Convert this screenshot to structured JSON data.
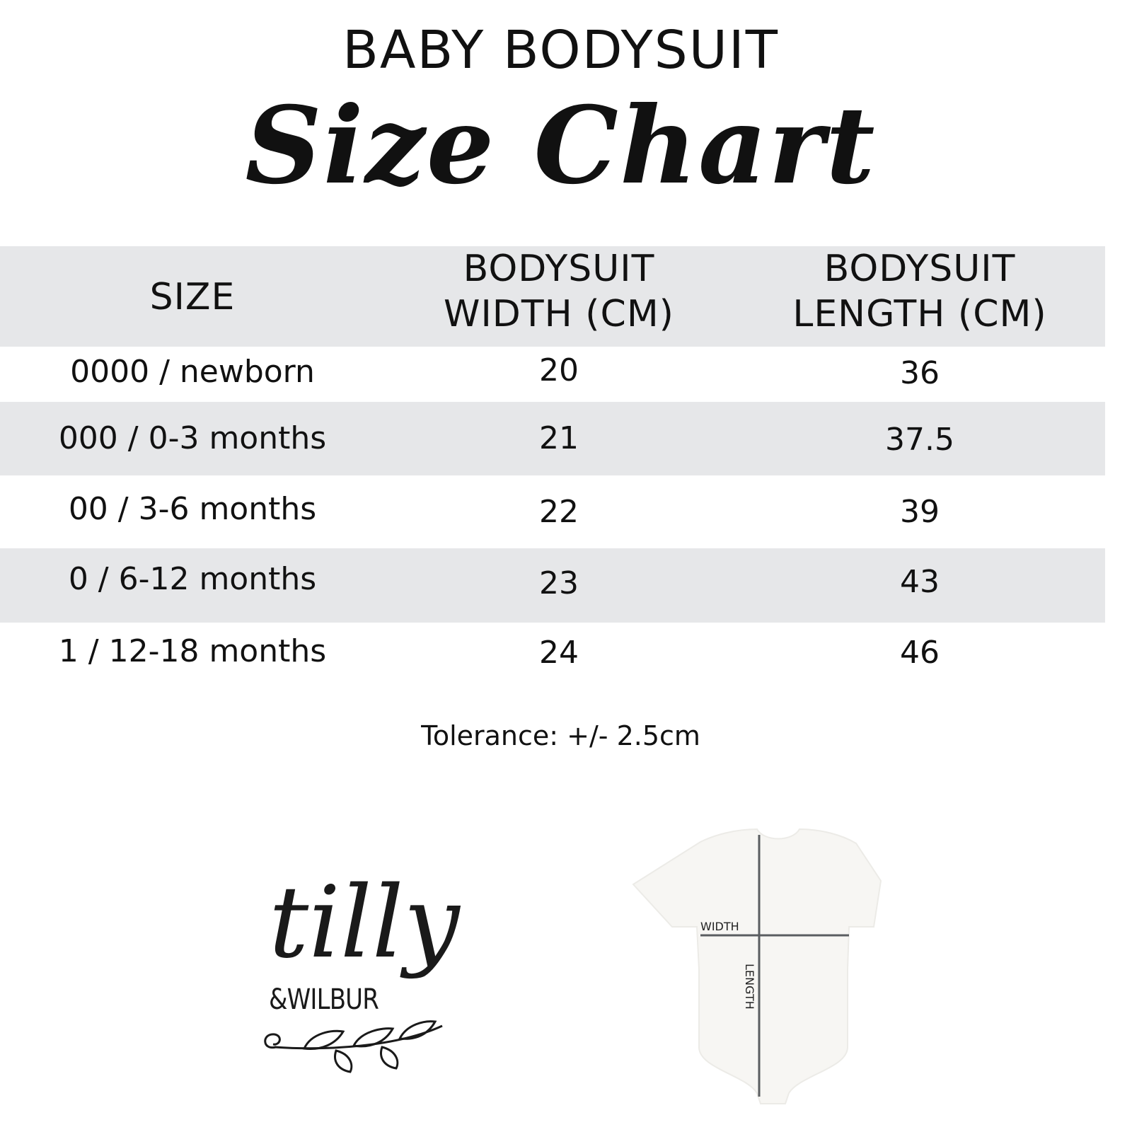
{
  "heading": {
    "line1": "BABY BODYSUIT",
    "line2": "Size Chart"
  },
  "table": {
    "headers": [
      "SIZE",
      "BODYSUIT\nWIDTH (CM)",
      "BODYSUIT\nLENGTH (CM)"
    ],
    "header_lines": {
      "size": "SIZE",
      "width1": "BODYSUIT",
      "width2": "WIDTH (CM)",
      "length1": "BODYSUIT",
      "length2": "LENGTH (CM)"
    },
    "rows": [
      {
        "size": "0000 / newborn",
        "width": "20",
        "length": "36"
      },
      {
        "size": "000 / 0-3 months",
        "width": "21",
        "length": "37.5"
      },
      {
        "size": "00 / 3-6 months",
        "width": "22",
        "length": "39"
      },
      {
        "size": "0 / 6-12 months",
        "width": "23",
        "length": "43"
      },
      {
        "size": "1 / 12-18 months",
        "width": "24",
        "length": "46"
      }
    ],
    "stripe_color": "#e6e7e9"
  },
  "tolerance": "Tolerance: +/- 2.5cm",
  "logo": {
    "line1": "tilly",
    "line2": "&WILBUR"
  },
  "diagram": {
    "width_label": "WIDTH",
    "length_label": "LENGTH",
    "line_color": "#5a5d60"
  }
}
